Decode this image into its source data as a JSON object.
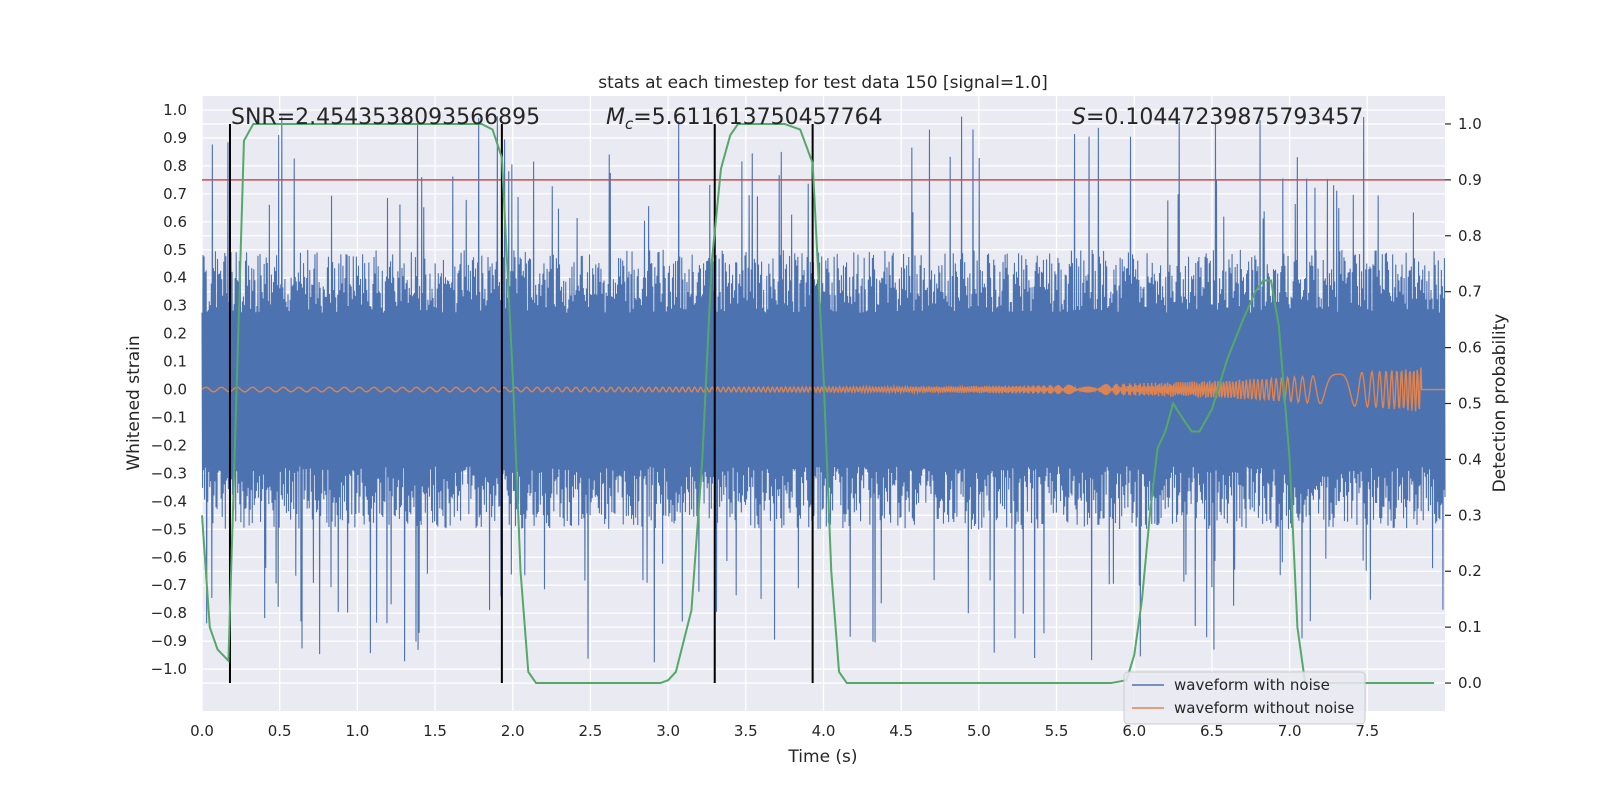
{
  "chart_data": {
    "type": "line",
    "title": "stats at each timestep for test data 150 [signal=1.0]",
    "xlabel": "Time (s)",
    "ylabel": "Whitened strain",
    "y2label": "Detection probability",
    "xlim": [
      0,
      8
    ],
    "ylim": [
      -1.15,
      1.05
    ],
    "y2lim": [
      -0.05,
      1.05
    ],
    "x_ticks": [
      0.0,
      0.5,
      1.0,
      1.5,
      2.0,
      2.5,
      3.0,
      3.5,
      4.0,
      4.5,
      5.0,
      5.5,
      6.0,
      6.5,
      7.0,
      7.5
    ],
    "x_tick_labels": [
      "0.0",
      "0.5",
      "1.0",
      "1.5",
      "2.0",
      "2.5",
      "3.0",
      "3.5",
      "4.0",
      "4.5",
      "5.0",
      "5.5",
      "6.0",
      "6.5",
      "7.0",
      "7.5"
    ],
    "y_ticks": [
      1.0,
      0.9,
      0.8,
      0.7,
      0.6,
      0.5,
      0.4,
      0.3,
      0.2,
      0.1,
      0.0,
      -0.1,
      -0.2,
      -0.3,
      -0.4,
      -0.5,
      -0.6,
      -0.7,
      -0.8,
      -0.9,
      -1.0
    ],
    "y_tick_labels": [
      "1.0",
      "0.9",
      "0.8",
      "0.7",
      "0.6",
      "0.5",
      "0.4",
      "0.3",
      "0.2",
      "0.1",
      "0.0",
      "−0.1",
      "−0.2",
      "−0.3",
      "−0.4",
      "−0.5",
      "−0.6",
      "−0.7",
      "−0.8",
      "−0.9",
      "−1.0"
    ],
    "y2_ticks": [
      1.0,
      0.9,
      0.8,
      0.7,
      0.6,
      0.5,
      0.4,
      0.3,
      0.2,
      0.1,
      0.0
    ],
    "y2_tick_labels": [
      "1.0",
      "0.9",
      "0.8",
      "0.7",
      "0.6",
      "0.5",
      "0.4",
      "0.3",
      "0.2",
      "0.1",
      "0.0"
    ],
    "grid": true,
    "background": "#eaeaf2",
    "legend": {
      "placement": "lower-right",
      "entries": [
        {
          "label": "waveform with noise",
          "color": "#4c72b0"
        },
        {
          "label": "waveform without noise",
          "color": "#dd8452"
        }
      ]
    },
    "annotations": [
      {
        "prefix": "SNR=",
        "value": "2.4543538093566895",
        "x": 0.2
      },
      {
        "prefix": "M",
        "subscript": "c",
        "eq": "=",
        "value": "5.611613750457764",
        "x": 2.6
      },
      {
        "prefix": "S",
        "eq": "=",
        "value": "0.10447239875793457",
        "x": 5.6
      }
    ],
    "threshold_line": {
      "y2": 0.9,
      "color": "#c44e52"
    },
    "vertical_lines_x": [
      0.18,
      1.93,
      3.3,
      3.93
    ],
    "noisy_waveform": {
      "name": "waveform with noise",
      "color": "#4c72b0",
      "x_range": [
        0,
        8
      ],
      "typical_amplitude": 0.5,
      "max_abs": 0.98
    },
    "clean_waveform": {
      "name": "waveform without noise",
      "color": "#dd8452",
      "x_range": [
        0,
        7.85
      ],
      "amplitude_start": 0.008,
      "amplitude_end": 0.08,
      "merger_x": 7.85
    },
    "detection_probability": {
      "color": "#55a868",
      "x": [
        0.0,
        0.05,
        0.1,
        0.17,
        0.22,
        0.27,
        0.33,
        0.5,
        1.0,
        1.5,
        1.8,
        1.87,
        1.93,
        2.0,
        2.05,
        2.1,
        2.15,
        2.2,
        2.5,
        2.8,
        2.95,
        3.0,
        3.05,
        3.15,
        3.22,
        3.28,
        3.34,
        3.4,
        3.45,
        3.5,
        3.6,
        3.75,
        3.85,
        3.93,
        4.0,
        4.05,
        4.1,
        4.15,
        4.25,
        4.5,
        5.0,
        5.5,
        5.85,
        5.95,
        6.0,
        6.05,
        6.1,
        6.15,
        6.2,
        6.25,
        6.32,
        6.37,
        6.42,
        6.5,
        6.6,
        6.7,
        6.78,
        6.83,
        6.88,
        6.93,
        7.0,
        7.05,
        7.1,
        7.2,
        7.5,
        7.93
      ],
      "y": [
        0.3,
        0.1,
        0.06,
        0.04,
        0.5,
        0.97,
        1.0,
        1.0,
        1.0,
        1.0,
        1.0,
        0.99,
        0.94,
        0.55,
        0.2,
        0.02,
        0.0,
        0.0,
        0.0,
        0.0,
        0.0,
        0.005,
        0.02,
        0.13,
        0.4,
        0.75,
        0.92,
        0.98,
        1.0,
        1.0,
        1.0,
        1.0,
        0.99,
        0.93,
        0.55,
        0.2,
        0.02,
        0.0,
        0.0,
        0.0,
        0.0,
        0.0,
        0.0,
        0.005,
        0.05,
        0.15,
        0.3,
        0.42,
        0.45,
        0.5,
        0.47,
        0.45,
        0.45,
        0.49,
        0.58,
        0.65,
        0.7,
        0.72,
        0.72,
        0.64,
        0.4,
        0.1,
        0.0,
        0.0,
        0.0,
        0.0
      ]
    }
  }
}
